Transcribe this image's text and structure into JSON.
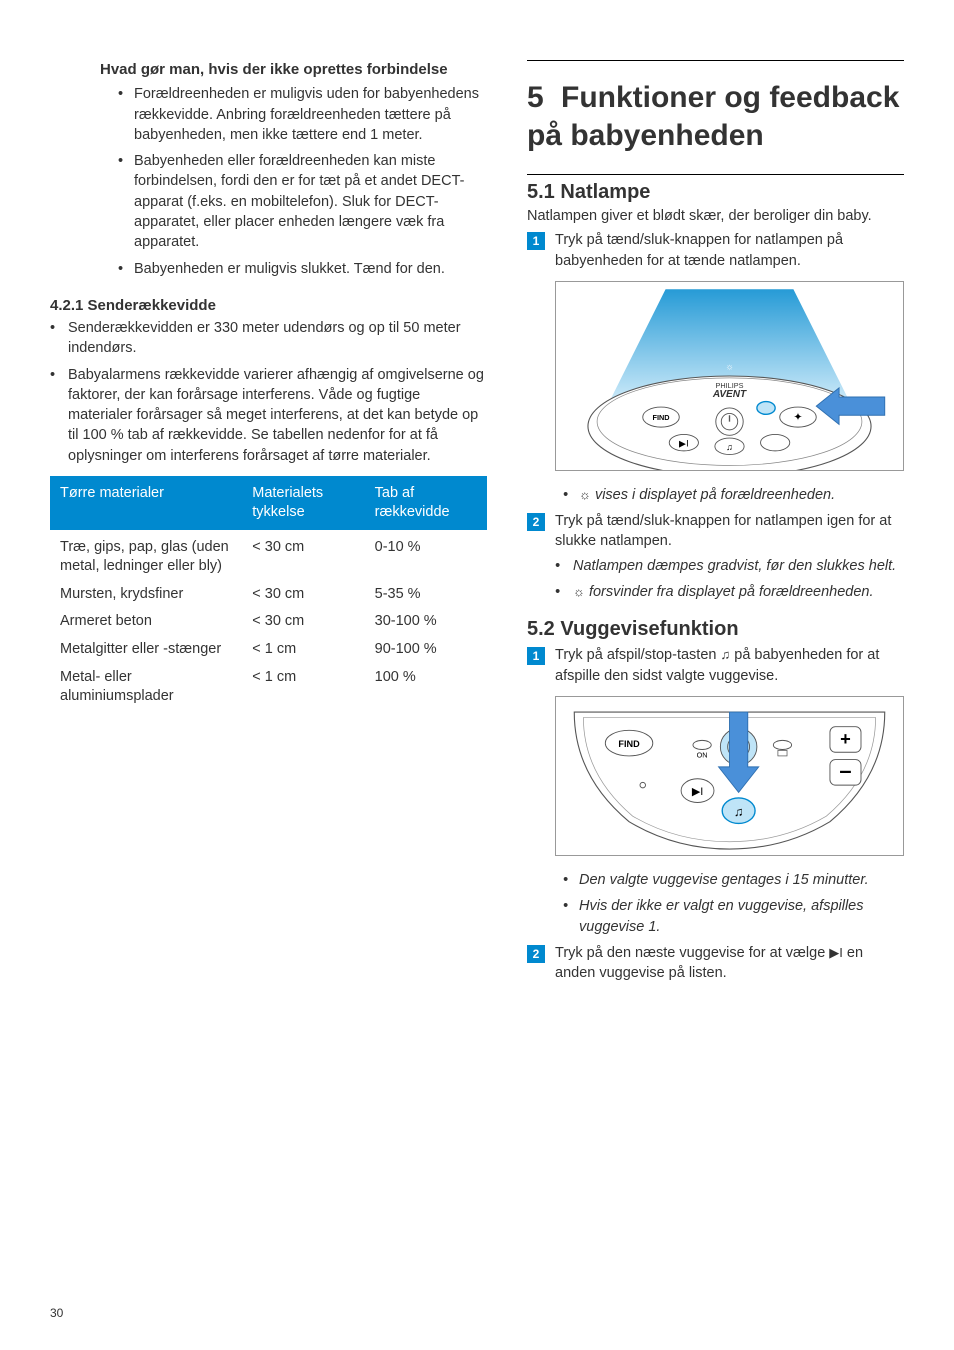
{
  "colors": {
    "accent": "#0089cf",
    "arrow": "#4a90d9",
    "light_blue_fill": "#bfe4f7",
    "text": "#333333"
  },
  "left": {
    "q_heading": "Hvad gør man, hvis der ikke oprettes forbindelse",
    "q_bullets": [
      "Forældreenheden er muligvis uden for babyenhedens rækkevidde. Anbring forældreenheden tættere på babyenheden, men ikke tættere end 1 meter.",
      "Babyenheden eller forældreenheden kan miste forbindelsen, fordi den er for tæt på et andet DECT-apparat (f.eks. en mobiltelefon). Sluk for DECT-apparatet, eller placer enheden længere væk fra apparatet.",
      "Babyenheden er muligvis slukket. Tænd for den."
    ],
    "subsection_num": "4.2.1",
    "subsection_title": "Senderækkevidde",
    "range_bullets": [
      "Senderækkevidden er 330 meter udendørs og op til 50 meter indendørs.",
      "Babyalarmens rækkevidde varierer afhængig af omgivelserne og faktorer, der kan forårsage interferens. Våde og fugtige materialer forårsager så meget interferens, at det kan betyde op til 100 % tab af rækkevidde. Se tabellen nedenfor for at få oplysninger om interferens forårsaget af tørre materialer."
    ],
    "table": {
      "headers": [
        "Tørre materialer",
        "Materialets tykkelse",
        "Tab af rækkevidde"
      ],
      "rows": [
        [
          "Træ, gips, pap, glas (uden metal, ledninger eller bly)",
          "< 30 cm",
          "0-10 %"
        ],
        [
          "Mursten, krydsfiner",
          "< 30 cm",
          "5-35 %"
        ],
        [
          "Armeret beton",
          "< 30 cm",
          "30-100 %"
        ],
        [
          "Metalgitter eller -stænger",
          "< 1 cm",
          "90-100 %"
        ],
        [
          "Metal- eller aluminiumsplader",
          "< 1 cm",
          "100 %"
        ]
      ],
      "col_widths": [
        "44%",
        "28%",
        "28%"
      ]
    }
  },
  "right": {
    "chapter_num": "5",
    "chapter_title": "Funktioner og feedback på babyenheden",
    "s1": {
      "num": "5.1",
      "title": "Natlampe",
      "intro": "Natlampen giver et blødt skær, der beroliger din baby.",
      "step1": "Tryk på tænd/sluk-knappen for natlampen på babyenheden for at tænde natlampen.",
      "after_fig_bullet": "vises i displayet på forældreenheden.",
      "step2": "Tryk på tænd/sluk-knappen for natlampen igen for at slukke natlampen.",
      "step2_bullets": [
        "Natlampen dæmpes gradvist, før den slukkes helt.",
        "forsvinder fra displayet på forældreenheden."
      ]
    },
    "s2": {
      "num": "5.2",
      "title": "Vuggevisefunktion",
      "step1_a": "Tryk på afspil/stop-tasten ",
      "step1_b": " på babyenheden for at afspille den sidst valgte vuggevise.",
      "after_fig_bullets": [
        "Den valgte vuggevise gentages i 15 minutter.",
        "Hvis der ikke er valgt en vuggevise, afspilles vuggevise 1."
      ],
      "step2_a": "Tryk på den næste vuggevise for at vælge ",
      "step2_b": " en anden vuggevise på listen."
    },
    "fig1_labels": {
      "find": "FIND",
      "brand": "AVENT",
      "brand_top": "PHILIPS"
    },
    "fig2_labels": {
      "find": "FIND",
      "on": "ON"
    }
  },
  "page_number": "30",
  "icons": {
    "sun": "☼",
    "note": "♫",
    "next": "▶I"
  }
}
